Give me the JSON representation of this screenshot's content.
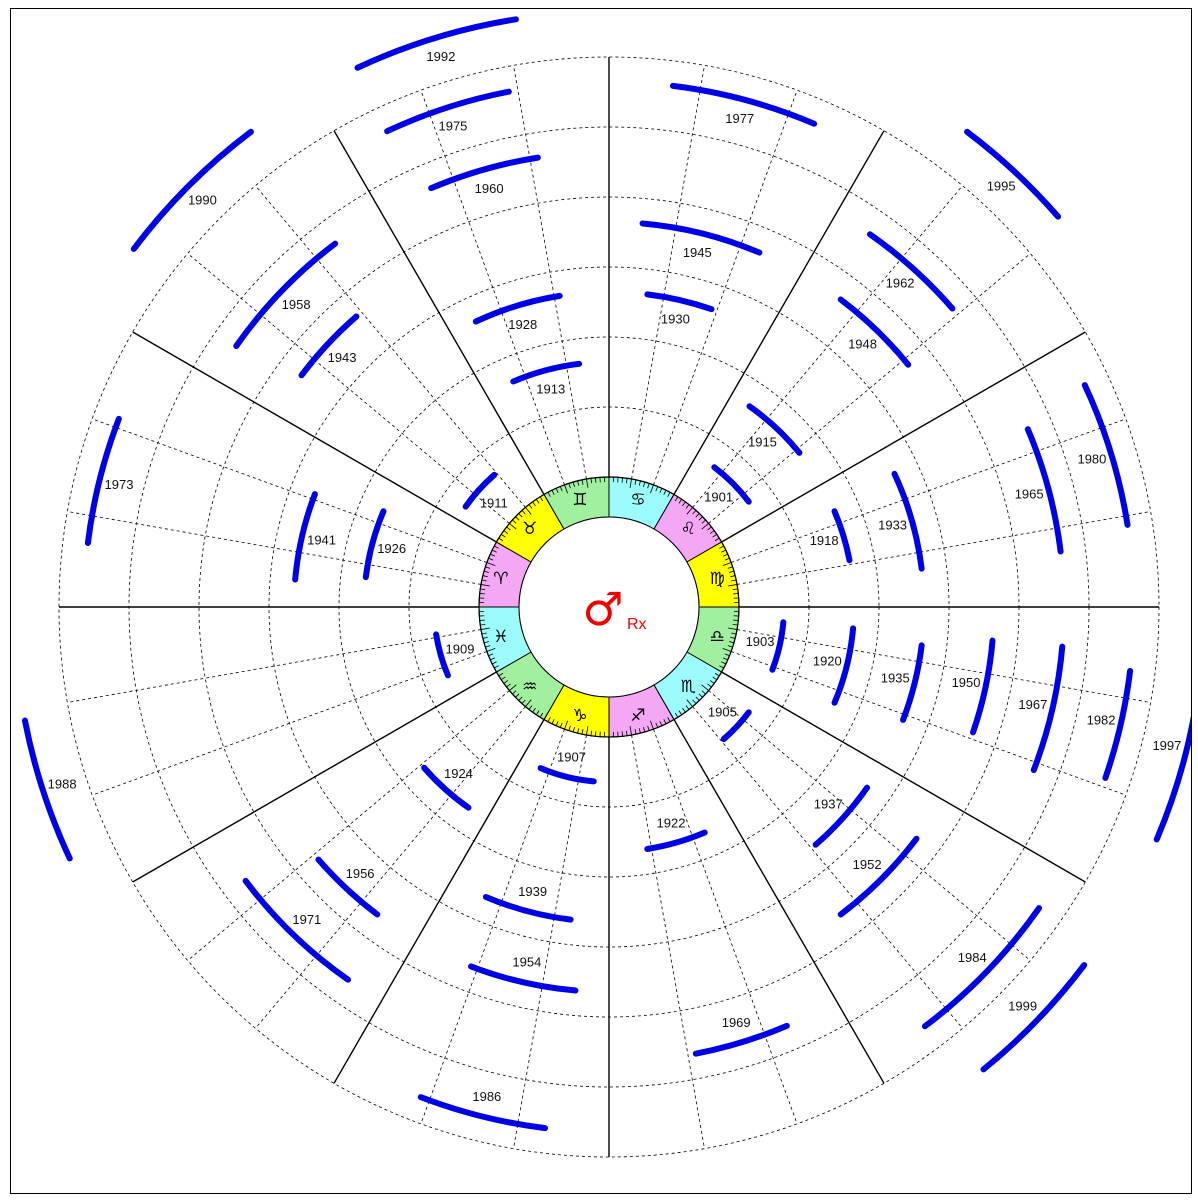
{
  "colors": {
    "arc": "#0000e6",
    "planet": "#ee0000",
    "grid": "#000000",
    "sector_colors": [
      "#ffff00",
      "#f4a8f4",
      "#9cfcfc",
      "#a0f0a0"
    ]
  },
  "center": {
    "planet_symbol": "♂",
    "retrograde_label": "Rx",
    "planet_icon": "mars-icon"
  },
  "zodiac_sectors": [
    {
      "sign": "Aries",
      "glyph": "♈",
      "fill": "#f4a8f4",
      "icon": "aries-icon"
    },
    {
      "sign": "Taurus",
      "glyph": "♉",
      "fill": "#ffff00",
      "icon": "taurus-icon"
    },
    {
      "sign": "Gemini",
      "glyph": "♊",
      "fill": "#a0f0a0",
      "icon": "gemini-icon"
    },
    {
      "sign": "Cancer",
      "glyph": "♋",
      "fill": "#9cfcfc",
      "icon": "cancer-icon"
    },
    {
      "sign": "Leo",
      "glyph": "♌",
      "fill": "#f4a8f4",
      "icon": "leo-icon"
    },
    {
      "sign": "Virgo",
      "glyph": "♍",
      "fill": "#ffff00",
      "icon": "virgo-icon"
    },
    {
      "sign": "Libra",
      "glyph": "♎",
      "fill": "#a0f0a0",
      "icon": "libra-icon"
    },
    {
      "sign": "Scorpio",
      "glyph": "♏",
      "fill": "#9cfcfc",
      "icon": "scorpio-icon"
    },
    {
      "sign": "Sagittarius",
      "glyph": "♐",
      "fill": "#f4a8f4",
      "icon": "sagittarius-icon"
    },
    {
      "sign": "Capricorn",
      "glyph": "♑",
      "fill": "#ffff00",
      "icon": "capricorn-icon"
    },
    {
      "sign": "Aquarius",
      "glyph": "♒",
      "fill": "#a0f0a0",
      "icon": "aquarius-icon"
    },
    {
      "sign": "Pisces",
      "glyph": "♓",
      "fill": "#9cfcfc",
      "icon": "pisces-icon"
    }
  ],
  "retrograde_periods": [
    {
      "year": "1901",
      "ring": 1,
      "sign": "Leo"
    },
    {
      "year": "1903",
      "ring": 1,
      "sign": "Libra"
    },
    {
      "year": "1905",
      "ring": 1,
      "sign": "Scorpio"
    },
    {
      "year": "1907",
      "ring": 1,
      "sign": "Capricorn"
    },
    {
      "year": "1909",
      "ring": 1,
      "sign": "Pisces"
    },
    {
      "year": "1911",
      "ring": 1,
      "sign": "Taurus"
    },
    {
      "year": "1913",
      "ring": 2,
      "sign": "Gemini"
    },
    {
      "year": "1915",
      "ring": 2,
      "sign": "Leo"
    },
    {
      "year": "1918",
      "ring": 2,
      "sign": "Virgo"
    },
    {
      "year": "1920",
      "ring": 2,
      "sign": "Libra"
    },
    {
      "year": "1922",
      "ring": 2,
      "sign": "Sagittarius"
    },
    {
      "year": "1924",
      "ring": 2,
      "sign": "Aquarius"
    },
    {
      "year": "1926",
      "ring": 2,
      "sign": "Aries"
    },
    {
      "year": "1928",
      "ring": 3,
      "sign": "Gemini"
    },
    {
      "year": "1930",
      "ring": 3,
      "sign": "Cancer"
    },
    {
      "year": "1933",
      "ring": 3,
      "sign": "Virgo"
    },
    {
      "year": "1935",
      "ring": 3,
      "sign": "Libra"
    },
    {
      "year": "1937",
      "ring": 3,
      "sign": "Scorpio"
    },
    {
      "year": "1939",
      "ring": 3,
      "sign": "Capricorn"
    },
    {
      "year": "1941",
      "ring": 3,
      "sign": "Aries"
    },
    {
      "year": "1943",
      "ring": 4,
      "sign": "Taurus"
    },
    {
      "year": "1945",
      "ring": 4,
      "sign": "Cancer"
    },
    {
      "year": "1948",
      "ring": 4,
      "sign": "Leo"
    },
    {
      "year": "1950",
      "ring": 4,
      "sign": "Libra"
    },
    {
      "year": "1952",
      "ring": 4,
      "sign": "Scorpio"
    },
    {
      "year": "1954",
      "ring": 4,
      "sign": "Capricorn"
    },
    {
      "year": "1956",
      "ring": 4,
      "sign": "Aquarius"
    },
    {
      "year": "1958",
      "ring": 5,
      "sign": "Taurus"
    },
    {
      "year": "1960",
      "ring": 5,
      "sign": "Gemini"
    },
    {
      "year": "1962",
      "ring": 5,
      "sign": "Leo"
    },
    {
      "year": "1965",
      "ring": 5,
      "sign": "Virgo"
    },
    {
      "year": "1967",
      "ring": 5,
      "sign": "Libra"
    },
    {
      "year": "1969",
      "ring": 5,
      "sign": "Sagittarius"
    },
    {
      "year": "1971",
      "ring": 5,
      "sign": "Aquarius"
    },
    {
      "year": "1973",
      "ring": 6,
      "sign": "Aries"
    },
    {
      "year": "1975",
      "ring": 6,
      "sign": "Gemini"
    },
    {
      "year": "1977",
      "ring": 6,
      "sign": "Cancer"
    },
    {
      "year": "1980",
      "ring": 6,
      "sign": "Virgo"
    },
    {
      "year": "1982",
      "ring": 6,
      "sign": "Libra"
    },
    {
      "year": "1984",
      "ring": 6,
      "sign": "Scorpio"
    },
    {
      "year": "1986",
      "ring": 6,
      "sign": "Capricorn"
    },
    {
      "year": "1988",
      "ring": 7,
      "sign": "Pisces"
    },
    {
      "year": "1990",
      "ring": 7,
      "sign": "Taurus"
    },
    {
      "year": "1992",
      "ring": 7,
      "sign": "Gemini"
    },
    {
      "year": "1995",
      "ring": 7,
      "sign": "Leo"
    },
    {
      "year": "1997",
      "ring": 7,
      "sign": "Libra"
    },
    {
      "year": "1999",
      "ring": 7,
      "sign": "Scorpio"
    }
  ]
}
